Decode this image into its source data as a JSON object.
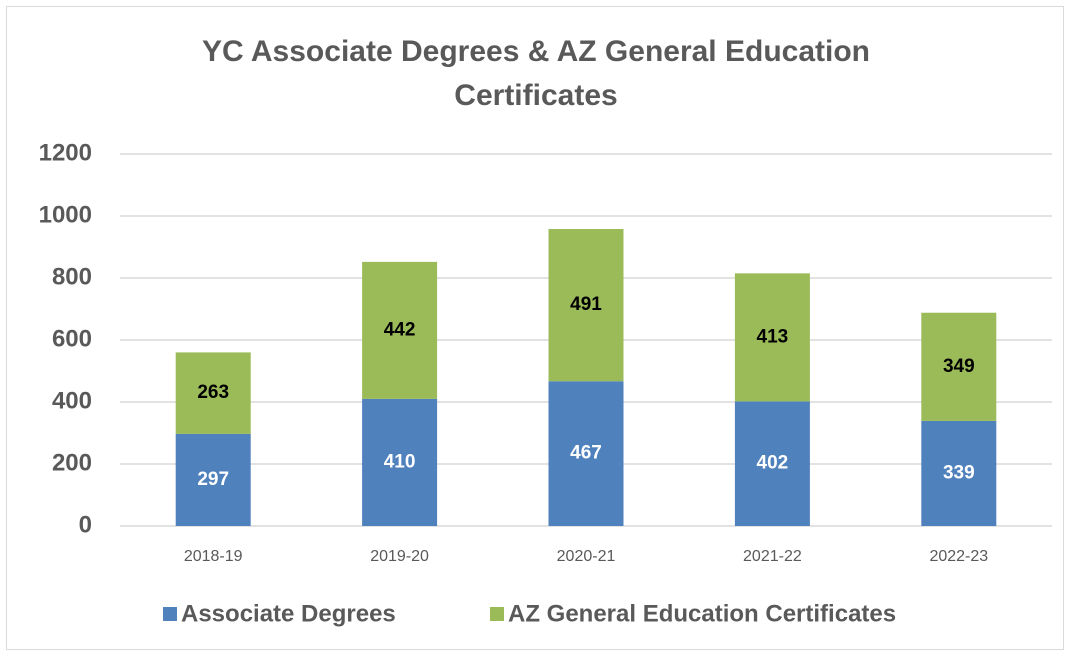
{
  "chart_data": {
    "type": "stacked_bar",
    "title": "YC Associate Degrees & AZ General Education Certificates",
    "categories": [
      "2018-19",
      "2019-20",
      "2020-21",
      "2021-22",
      "2022-23"
    ],
    "series": [
      {
        "name": "Associate Degrees",
        "color": "#4f81bd",
        "values": [
          297,
          410,
          467,
          402,
          339
        ]
      },
      {
        "name": "AZ General Education Certificates",
        "color": "#9bbb59",
        "values": [
          263,
          442,
          491,
          413,
          349
        ]
      }
    ],
    "ylim": [
      0,
      1200
    ],
    "yticks": [
      0,
      200,
      400,
      600,
      800,
      1000,
      1200
    ],
    "grid": true,
    "legend": "bottom"
  }
}
